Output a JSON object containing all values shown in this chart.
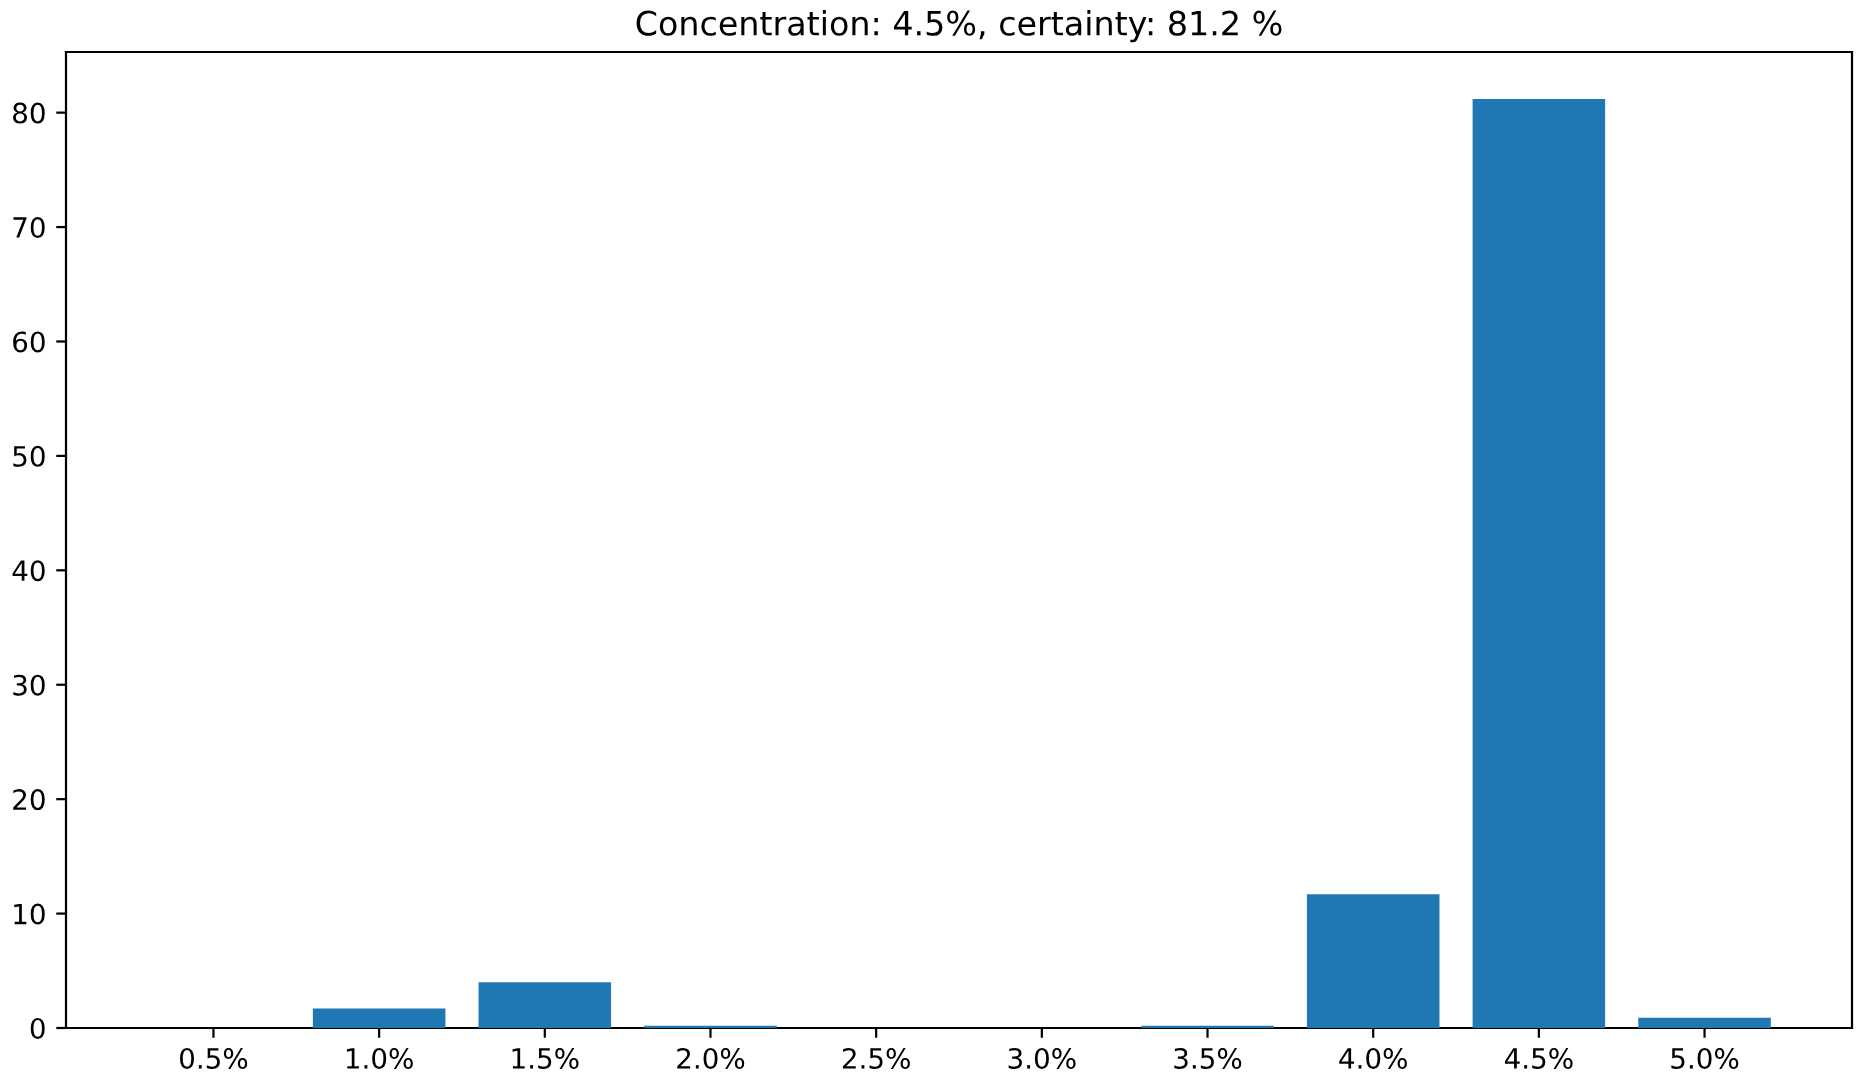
{
  "chart_data": {
    "type": "bar",
    "title": "Concentration: 4.5%, certainty: 81.2 %",
    "categories": [
      "0.5%",
      "1.0%",
      "1.5%",
      "2.0%",
      "2.5%",
      "3.0%",
      "3.5%",
      "4.0%",
      "4.5%",
      "5.0%"
    ],
    "values": [
      0,
      1.7,
      4.0,
      0.2,
      0,
      0,
      0.2,
      11.7,
      81.2,
      0.9
    ],
    "color": "#1f77b4",
    "ylim": [
      0,
      85.3
    ],
    "yticks": [
      0,
      10,
      20,
      30,
      40,
      50,
      60,
      70,
      80
    ],
    "grid": false,
    "legend": false
  }
}
